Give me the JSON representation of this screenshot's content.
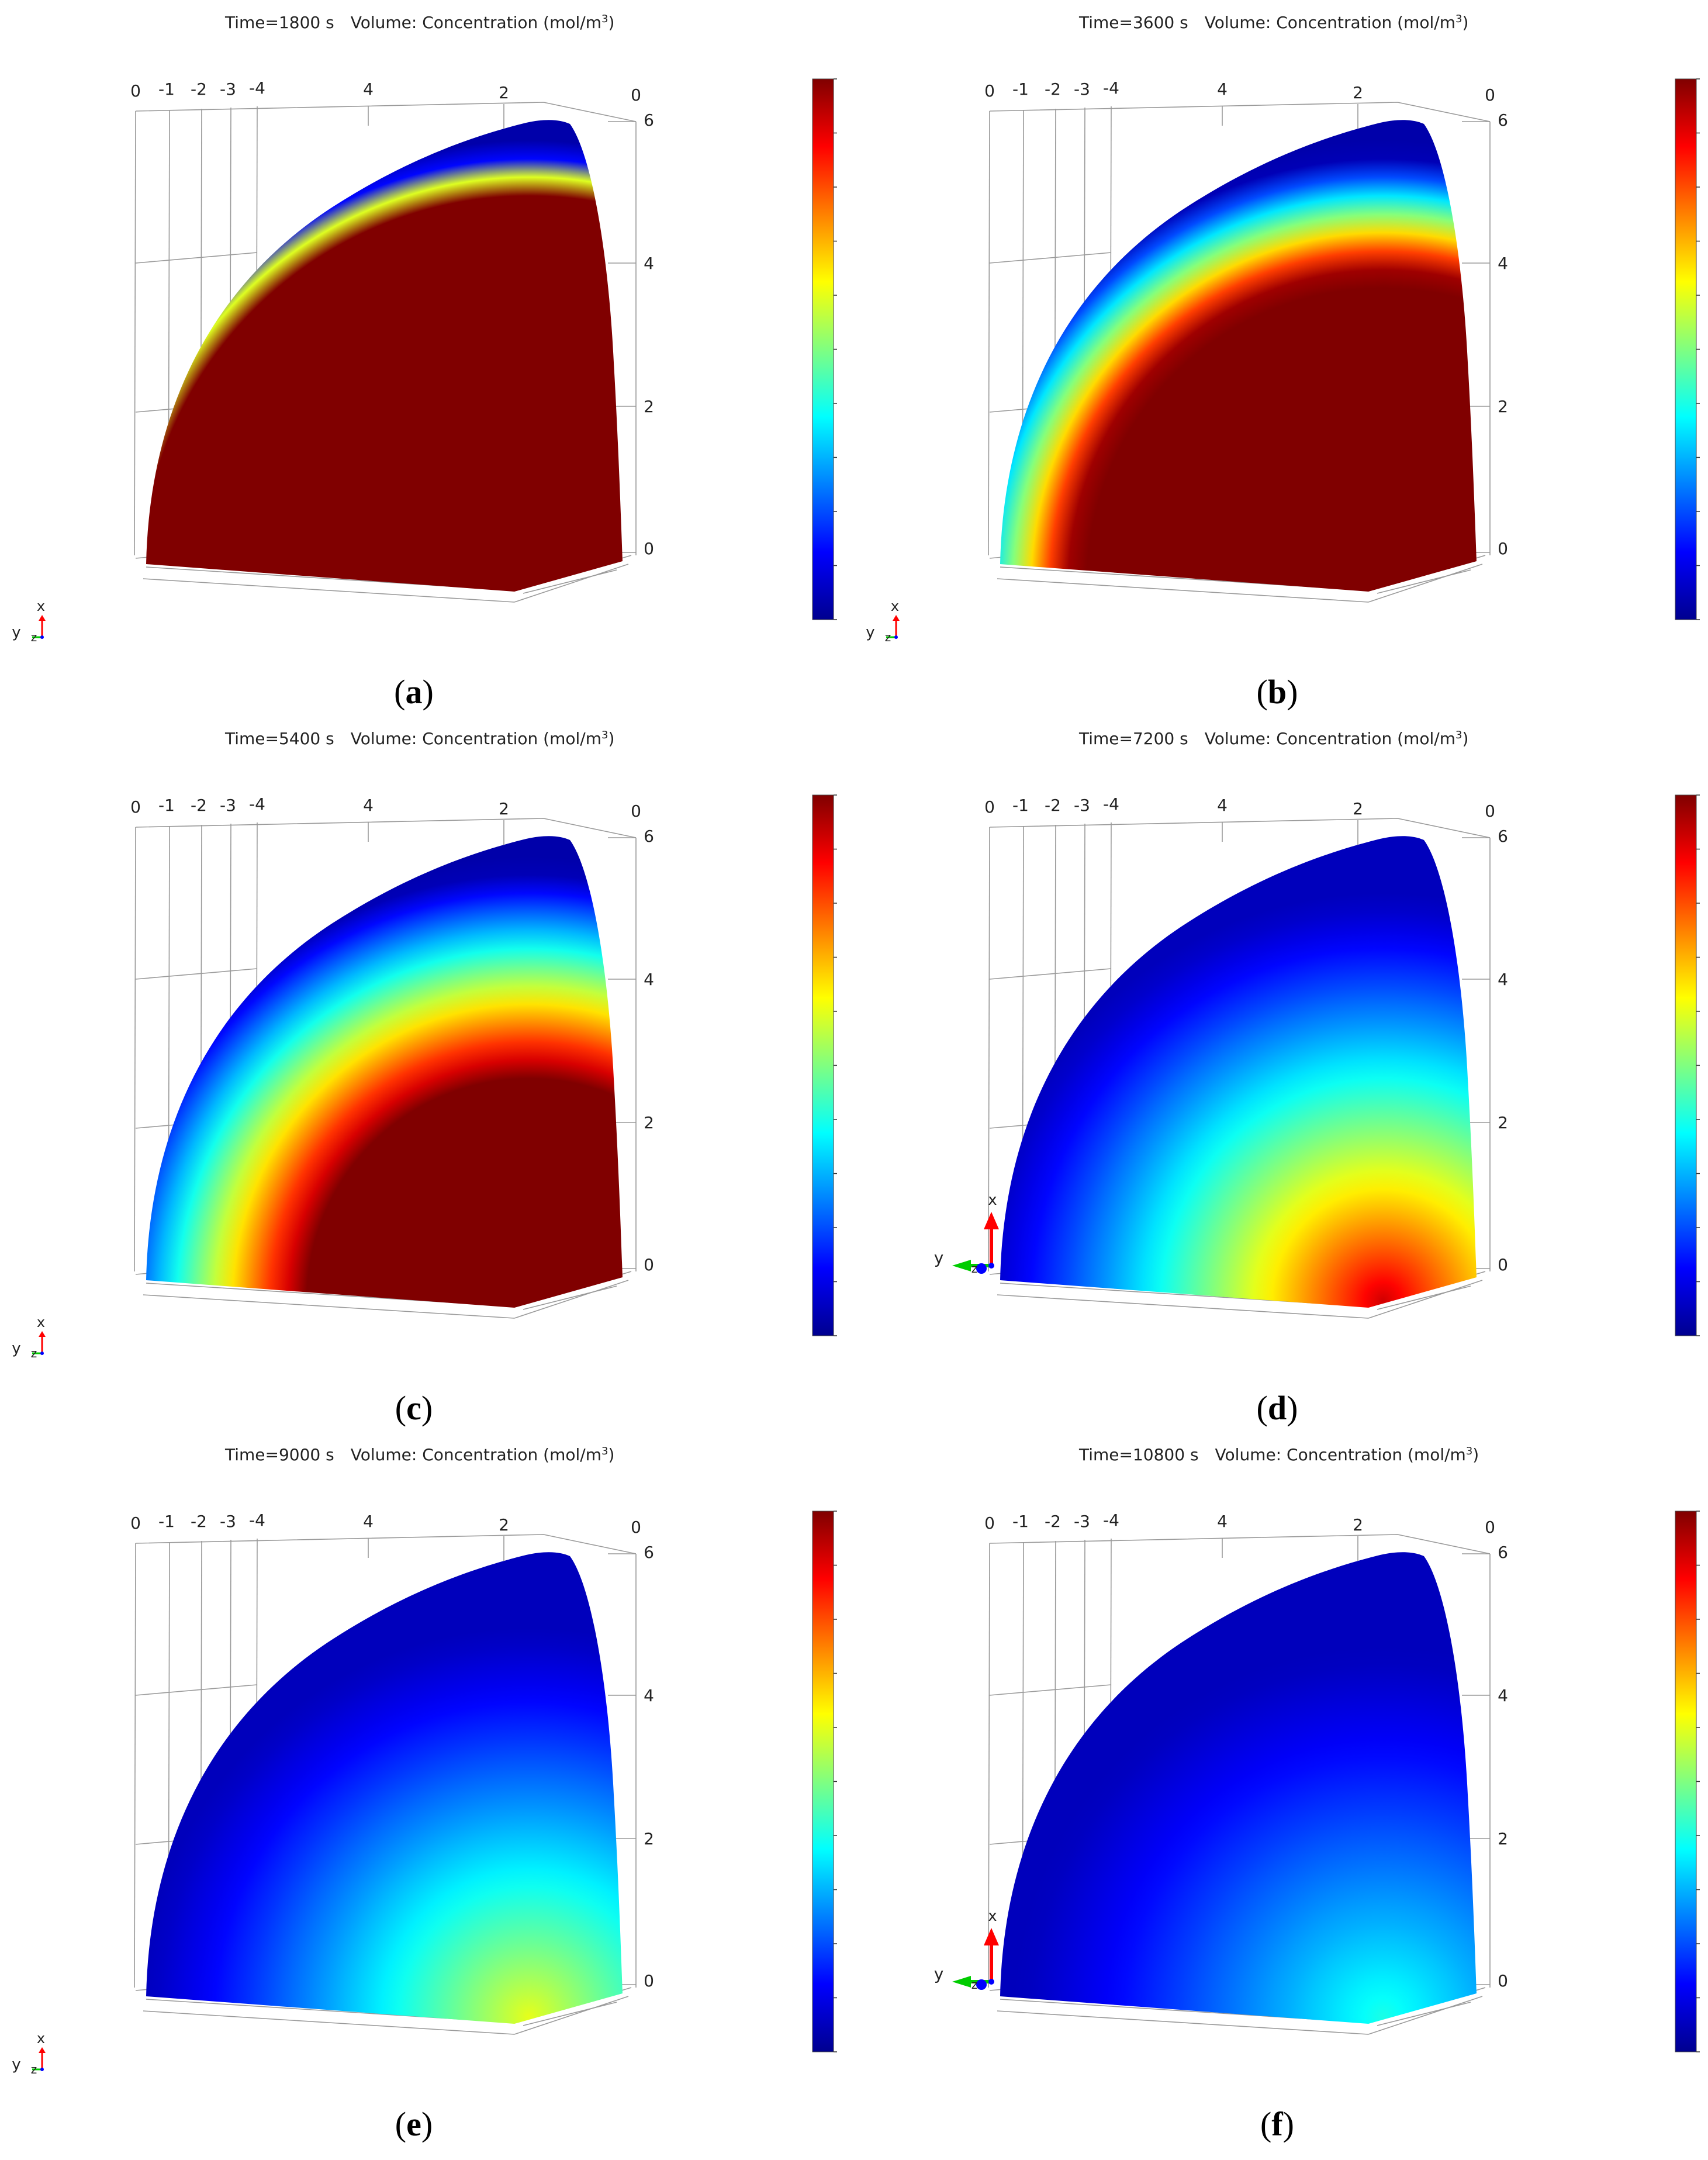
{
  "colors": {
    "colormap": [
      "#00008f",
      "#0000ff",
      "#0080ff",
      "#00ffff",
      "#80ff80",
      "#ffff00",
      "#ff8000",
      "#ff0000",
      "#800000"
    ],
    "grid": "#9a9a9a",
    "axis_x_arrow": "#ff0000",
    "axis_y_arrow": "#00cc00",
    "axis_z_dot": "#0000ff"
  },
  "axes": {
    "top_ticks": [
      "0",
      "-1",
      "-2",
      "-3",
      "-4",
      "4",
      "2",
      "0"
    ],
    "right_ticks": [
      "6",
      "4",
      "2",
      "0"
    ],
    "triad": {
      "x": "x",
      "y": "y",
      "z": "z"
    }
  },
  "panels": [
    {
      "id": "a",
      "caption_letter": "a",
      "time": "Time=1800 s",
      "quantity": "Volume: Concentration (mol/m",
      "unit_sup": "3",
      "unit_close": ")",
      "triad_style": "small",
      "concentration_profile": {
        "core_fraction": 0.88,
        "edge_fraction": 0.97,
        "core_level": 1.0
      }
    },
    {
      "id": "b",
      "caption_letter": "b",
      "time": "Time=3600 s",
      "quantity": "Volume: Concentration (mol/m",
      "unit_sup": "3",
      "unit_close": ")",
      "triad_style": "small",
      "concentration_profile": {
        "core_fraction": 0.7,
        "edge_fraction": 0.97,
        "core_level": 1.0
      }
    },
    {
      "id": "c",
      "caption_letter": "c",
      "time": "Time=5400 s",
      "quantity": "Volume: Concentration (mol/m",
      "unit_sup": "3",
      "unit_close": ")",
      "triad_style": "small",
      "concentration_profile": {
        "core_fraction": 0.5,
        "edge_fraction": 0.98,
        "core_level": 1.0
      }
    },
    {
      "id": "d",
      "caption_letter": "d",
      "time": "Time=7200 s",
      "quantity": "Volume: Concentration (mol/m",
      "unit_sup": "3",
      "unit_close": ")",
      "triad_style": "large",
      "concentration_profile": {
        "core_fraction": 0.0,
        "edge_fraction": 1.0,
        "core_level": 0.92
      }
    },
    {
      "id": "e",
      "caption_letter": "e",
      "time": "Time=9000 s",
      "quantity": "Volume: Concentration (mol/m",
      "unit_sup": "3",
      "unit_close": ")",
      "triad_style": "small",
      "concentration_profile": {
        "core_fraction": 0.0,
        "edge_fraction": 1.0,
        "core_level": 0.6
      }
    },
    {
      "id": "f",
      "caption_letter": "f",
      "time": "Time=10800 s",
      "quantity": "Volume: Concentration (mol/m",
      "unit_sup": "3",
      "unit_close": ")",
      "triad_style": "large",
      "concentration_profile": {
        "core_fraction": 0.0,
        "edge_fraction": 1.0,
        "core_level": 0.4
      }
    }
  ]
}
